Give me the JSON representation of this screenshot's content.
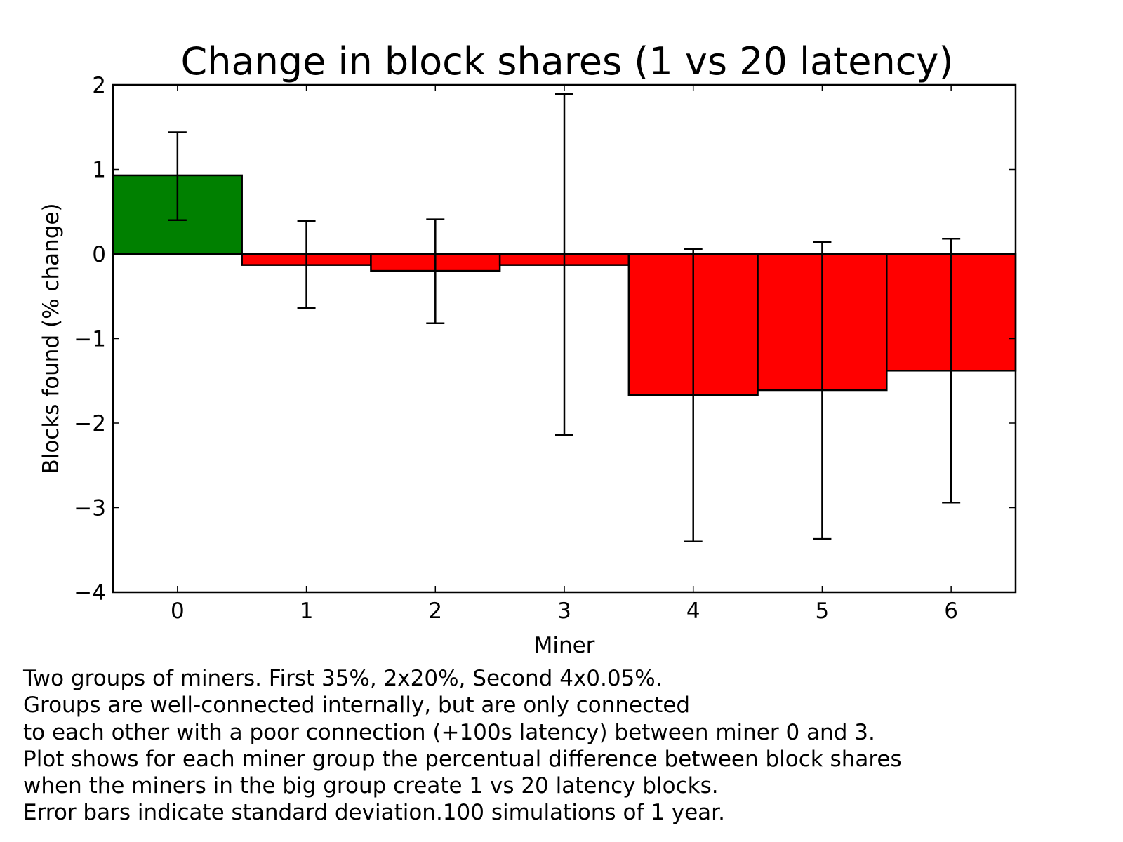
{
  "chart_data": {
    "type": "bar",
    "title": "Change in block shares (1 vs 20 latency)",
    "xlabel": "Miner",
    "ylabel": "Blocks found (% change)",
    "categories": [
      "0",
      "1",
      "2",
      "3",
      "4",
      "5",
      "6"
    ],
    "values": [
      0.93,
      -0.13,
      -0.2,
      -0.13,
      -1.67,
      -1.61,
      -1.38
    ],
    "error_low": [
      0.4,
      -0.64,
      -0.82,
      -2.14,
      -3.4,
      -3.37,
      -2.94
    ],
    "error_high": [
      1.44,
      0.39,
      0.41,
      1.89,
      0.06,
      0.14,
      0.18
    ],
    "ylim": [
      -4,
      2
    ],
    "xlim": [
      -0.5,
      6.5
    ],
    "yticks": [
      2,
      1,
      0,
      -1,
      -2,
      -3,
      -4
    ],
    "ytick_labels": [
      "2",
      "1",
      "0",
      "−1",
      "−2",
      "−3",
      "−4"
    ],
    "colors": {
      "positive": "#008000",
      "negative": "#ff0000"
    },
    "grid": false
  },
  "caption": {
    "lines": [
      "Two groups of miners. First 35%, 2x20%, Second 4x0.05%.",
      "Groups are well-connected internally, but are only connected",
      "to each other with a poor connection (+100s latency) between miner 0 and 3.",
      "Plot shows for each miner group the percentual difference between block shares",
      "when the miners in the big group create 1 vs 20 latency blocks.",
      "Error bars indicate standard deviation.100 simulations of 1 year."
    ]
  }
}
